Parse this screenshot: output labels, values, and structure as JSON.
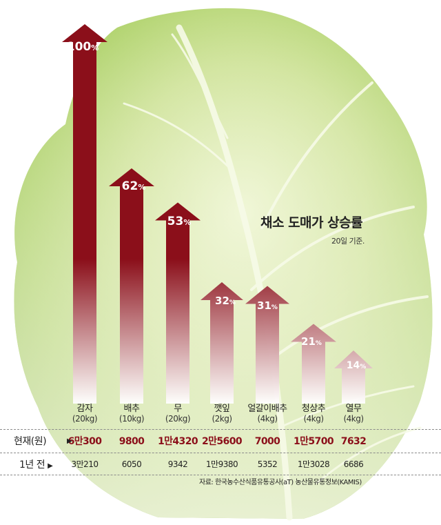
{
  "title": "채소 도매가 상승률",
  "subtitle": "20일 기준.",
  "rows": {
    "current_label": "현재(원)",
    "year_ago_label": "1년 전",
    "arrow_glyph": "▶"
  },
  "source": "자료: 한국농수산식품유통공사(aT) 농산물유통정보(KAMIS)",
  "colors": {
    "bar": "#8b0f1a",
    "bar_fade": "#ffffff",
    "current_price": "#8b0f1a",
    "text": "#222222"
  },
  "chart_data": {
    "type": "bar",
    "title": "채소 도매가 상승률",
    "subtitle": "20일 기준.",
    "unit": "%",
    "categories": [
      "감자",
      "배추",
      "무",
      "깻잎",
      "얼갈이배추",
      "청상추",
      "열무"
    ],
    "category_units": [
      "(20kg)",
      "(10kg)",
      "(20kg)",
      "(2kg)",
      "(4kg)",
      "(4kg)",
      "(4kg)"
    ],
    "values": [
      100,
      62,
      53,
      32,
      31,
      21,
      14
    ],
    "current_price": [
      "6만300",
      "9800",
      "1만4320",
      "2만5600",
      "7000",
      "1만5700",
      "7632"
    ],
    "year_ago_price": [
      "3만210",
      "6050",
      "9342",
      "1만9380",
      "5352",
      "1만3028",
      "6686"
    ],
    "ylim": [
      0,
      100
    ],
    "grid": false,
    "legend": "none"
  }
}
